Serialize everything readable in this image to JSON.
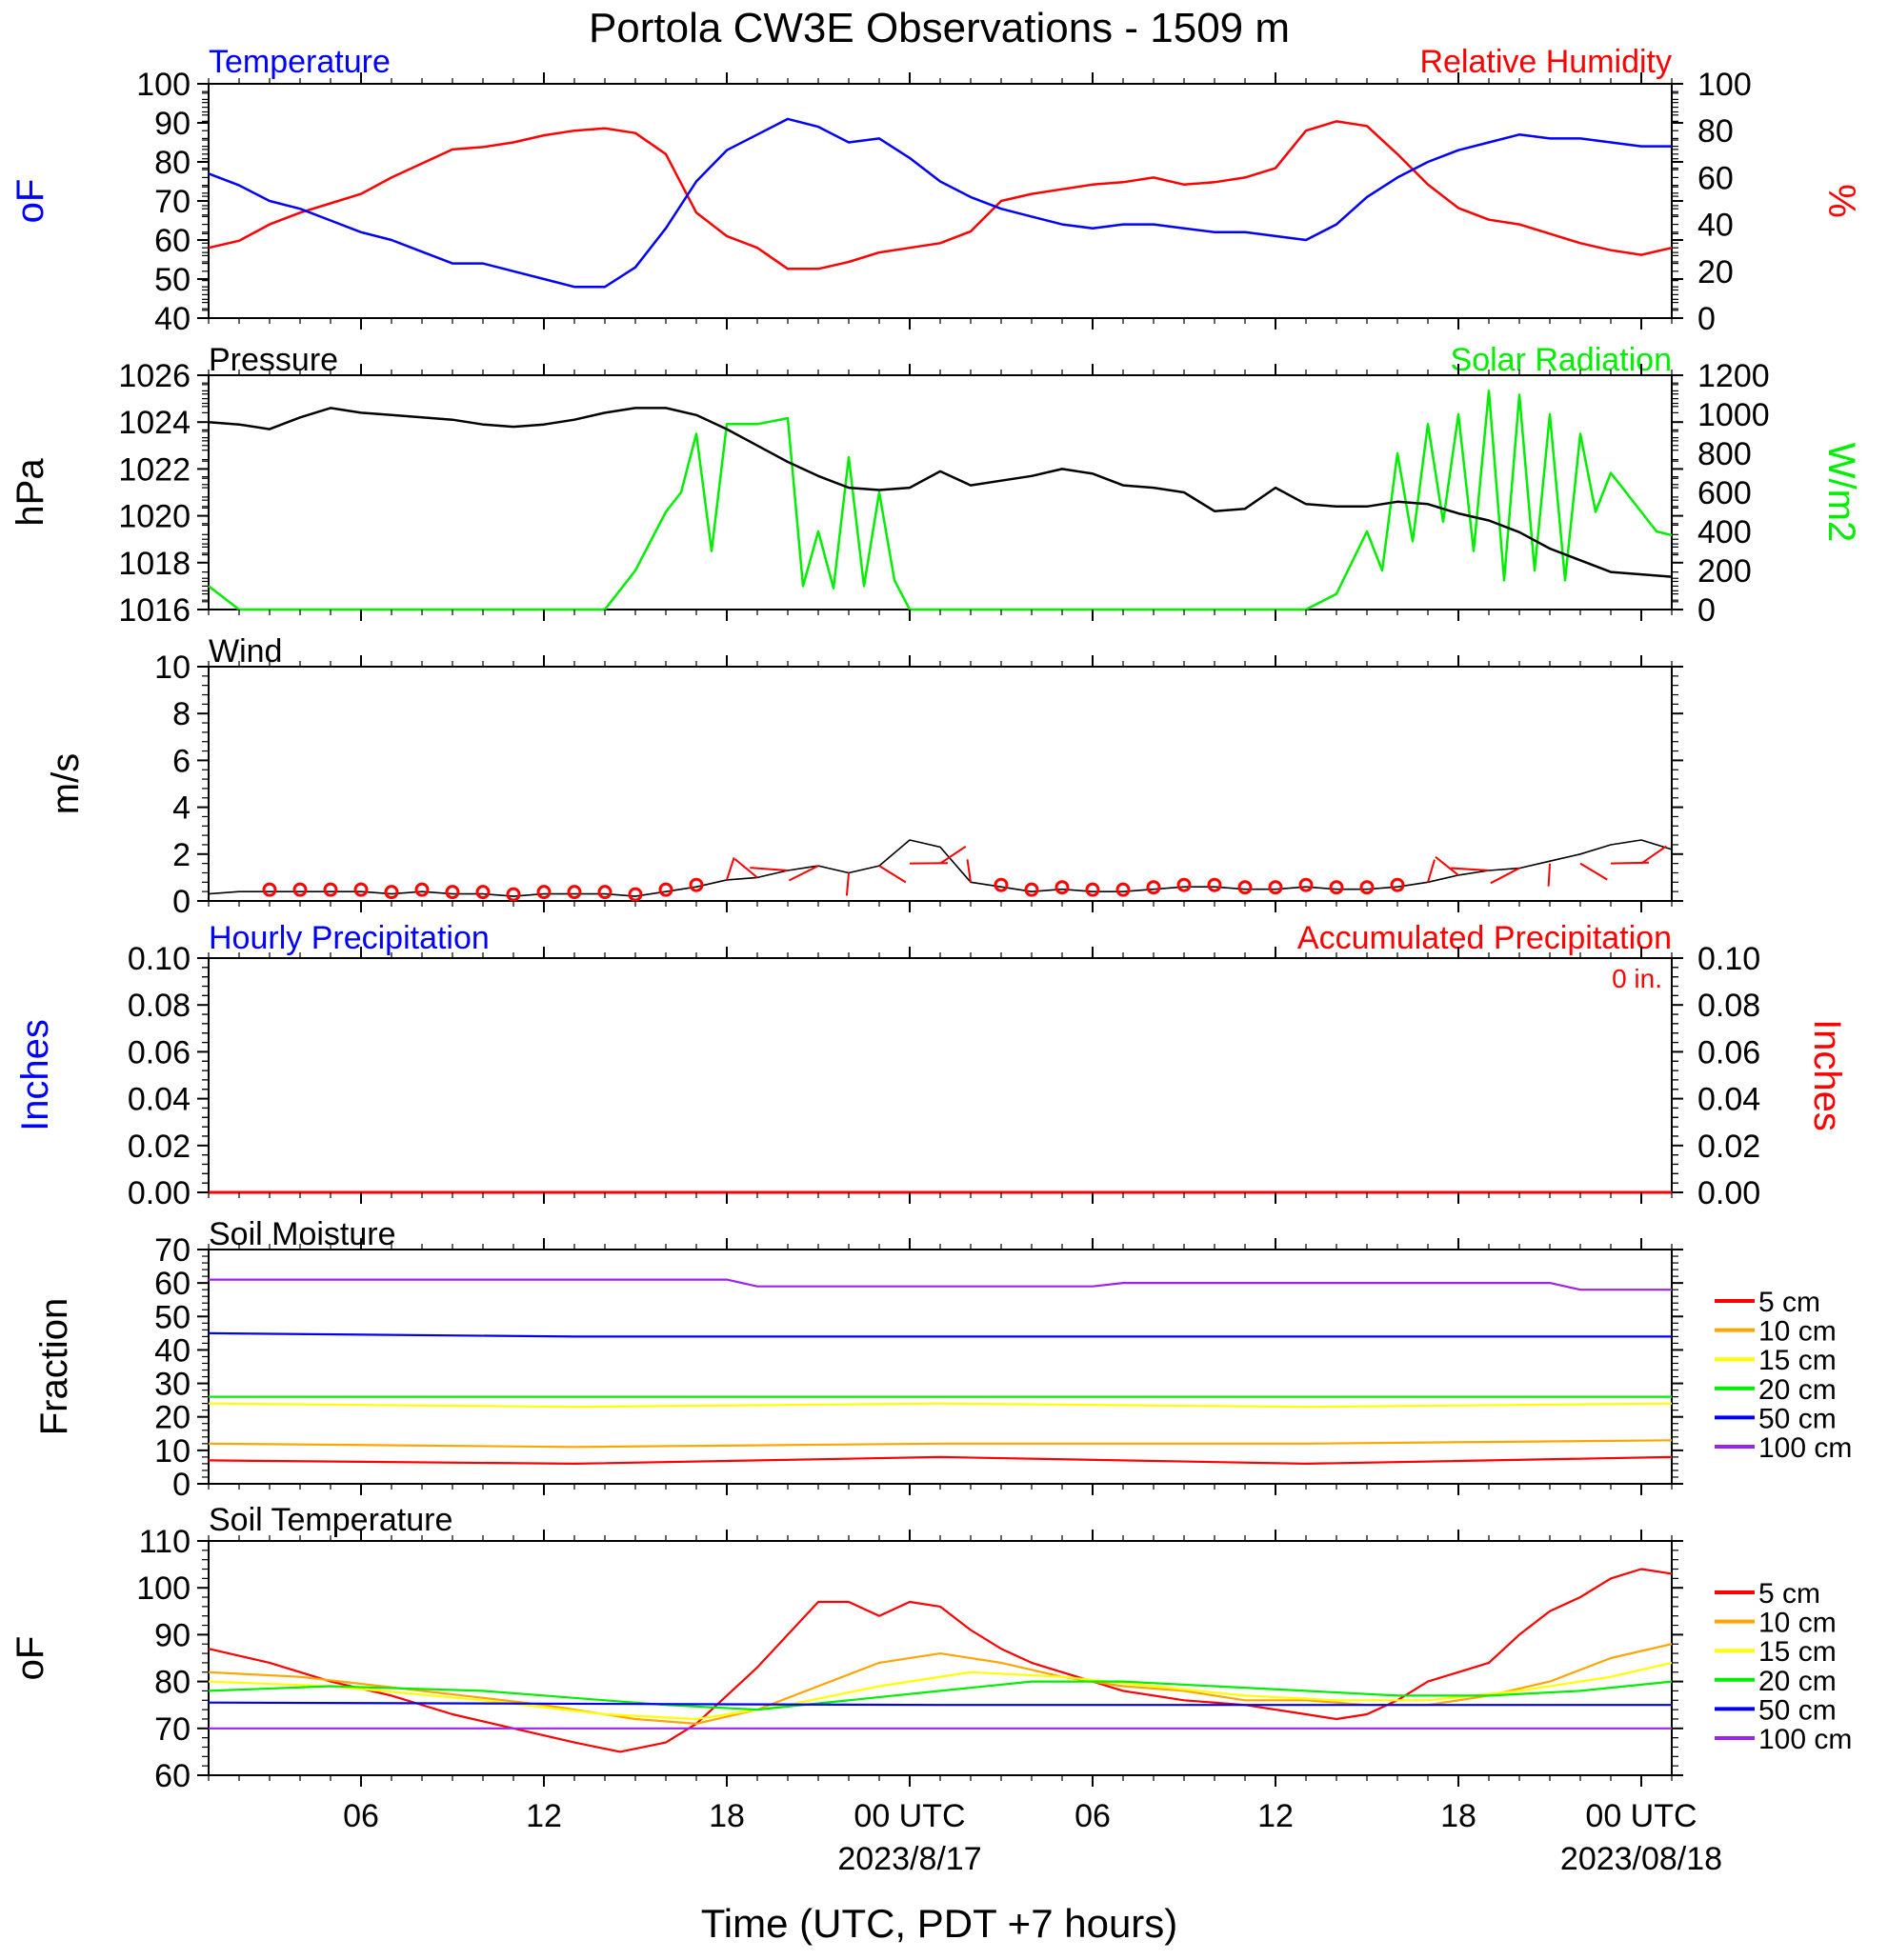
{
  "title": "Portola CW3E Observations - 1509 m",
  "x_axis": {
    "title": "Time (UTC, PDT +7 hours)",
    "ticks": [
      "06",
      "12",
      "18",
      "00 UTC",
      "06",
      "12",
      "18",
      "00 UTC"
    ],
    "tick_hours": [
      6,
      12,
      18,
      24,
      30,
      36,
      42,
      48
    ],
    "date_labels": [
      {
        "hour": 24,
        "text": "2023/8/17"
      },
      {
        "hour": 48,
        "text": "2023/08/18"
      }
    ],
    "range_hours": [
      1,
      49
    ]
  },
  "colors": {
    "temperature": "#0000ff",
    "humidity": "#ff0000",
    "pressure": "#000000",
    "solar": "#00ee00",
    "wind": "#000000",
    "wind_barb": "#ff0000",
    "hourly_precip": "#0000ff",
    "accum_precip": "#ff0000",
    "depth_5cm": "#ff0000",
    "depth_10cm": "#ffa500",
    "depth_15cm": "#ffff00",
    "depth_20cm": "#00ee00",
    "depth_50cm": "#0000ee",
    "depth_100cm": "#a020f0"
  },
  "panels": {
    "temp_rh": {
      "left_title": "Temperature",
      "right_title": "Relative Humidity",
      "left_unit": "oF",
      "right_unit": "%",
      "left_ticks": [
        "100",
        "90",
        "80",
        "70",
        "60",
        "50",
        "40"
      ],
      "right_ticks": [
        "100",
        "80",
        "60",
        "40",
        "20",
        "0"
      ]
    },
    "pressure_solar": {
      "left_title": "Pressure",
      "right_title": "Solar Radiation",
      "left_unit": "hPa",
      "right_unit": "W/m2",
      "left_ticks": [
        "1026",
        "1024",
        "1022",
        "1020",
        "1018",
        "1016"
      ],
      "right_ticks": [
        "1200",
        "1000",
        "800",
        "600",
        "400",
        "200",
        "0"
      ]
    },
    "wind": {
      "left_title": "Wind",
      "left_unit": "m/s",
      "left_ticks": [
        "10",
        "8",
        "6",
        "4",
        "2",
        "0"
      ]
    },
    "precip": {
      "left_title": "Hourly Precipitation",
      "right_title": "Accumulated Precipitation",
      "accum_label": "0 in.",
      "left_unit": "Inches",
      "right_unit": "Inches",
      "left_ticks": [
        "0.10",
        "0.08",
        "0.06",
        "0.04",
        "0.02",
        "0.00"
      ],
      "right_ticks": [
        "0.10",
        "0.08",
        "0.06",
        "0.04",
        "0.02",
        "0.00"
      ]
    },
    "soil_moisture": {
      "left_title": "Soil Moisture",
      "left_unit": "Fraction",
      "left_ticks": [
        "70",
        "60",
        "50",
        "40",
        "30",
        "20",
        "10",
        "0"
      ],
      "legend": [
        "5 cm",
        "10 cm",
        "15 cm",
        "20 cm",
        "50 cm",
        "100 cm"
      ]
    },
    "soil_temp": {
      "left_title": "Soil Temperature",
      "left_unit": "oF",
      "left_ticks": [
        "110",
        "100",
        "90",
        "80",
        "70",
        "60"
      ],
      "legend": [
        "5 cm",
        "10 cm",
        "15 cm",
        "20 cm",
        "50 cm",
        "100 cm"
      ]
    }
  },
  "chart_data": [
    {
      "type": "line",
      "panel": "Temperature / Relative Humidity",
      "x_unit": "hours since 2023-08-16 00 UTC",
      "ylim_left": [
        40,
        100
      ],
      "ylim_right": [
        0,
        100
      ],
      "series": [
        {
          "name": "Temperature",
          "axis": "left",
          "x": [
            1,
            2,
            3,
            4,
            5,
            6,
            7,
            8,
            9,
            10,
            11,
            12,
            13,
            14,
            15,
            16,
            17,
            18,
            19,
            20,
            21,
            22,
            23,
            24,
            25,
            26,
            27,
            28,
            29,
            30,
            31,
            32,
            33,
            34,
            35,
            36,
            37,
            38,
            39,
            40,
            41,
            42,
            43,
            44,
            45,
            46,
            47,
            48,
            49
          ],
          "y": [
            77,
            74,
            70,
            68,
            65,
            62,
            60,
            57,
            54,
            54,
            52,
            50,
            48,
            48,
            53,
            63,
            75,
            83,
            87,
            91,
            89,
            85,
            86,
            81,
            75,
            71,
            68,
            66,
            64,
            63,
            64,
            64,
            63,
            62,
            62,
            61,
            60,
            64,
            71,
            76,
            80,
            83,
            85,
            87,
            86,
            86,
            85,
            84,
            84
          ]
        },
        {
          "name": "Relative Humidity",
          "axis": "right",
          "x": [
            1,
            2,
            3,
            4,
            5,
            6,
            7,
            8,
            9,
            10,
            11,
            12,
            13,
            14,
            15,
            16,
            17,
            18,
            19,
            20,
            21,
            22,
            23,
            24,
            25,
            26,
            27,
            28,
            29,
            30,
            31,
            32,
            33,
            34,
            35,
            36,
            37,
            38,
            39,
            40,
            41,
            42,
            43,
            44,
            45,
            46,
            47,
            48,
            49
          ],
          "y": [
            30,
            33,
            40,
            45,
            49,
            53,
            60,
            66,
            72,
            73,
            75,
            78,
            80,
            81,
            79,
            70,
            45,
            35,
            30,
            21,
            21,
            24,
            28,
            30,
            32,
            37,
            50,
            53,
            55,
            57,
            58,
            60,
            57,
            58,
            60,
            64,
            80,
            84,
            82,
            70,
            57,
            47,
            42,
            40,
            36,
            32,
            29,
            27,
            30
          ]
        }
      ]
    },
    {
      "type": "line",
      "panel": "Pressure / Solar Radiation",
      "x_unit": "hours since 2023-08-16 00 UTC",
      "ylim_left": [
        1016,
        1026
      ],
      "ylim_right": [
        0,
        1200
      ],
      "series": [
        {
          "name": "Pressure",
          "axis": "left",
          "x": [
            1,
            2,
            3,
            4,
            5,
            6,
            7,
            8,
            9,
            10,
            11,
            12,
            13,
            14,
            15,
            16,
            17,
            18,
            19,
            20,
            21,
            22,
            23,
            24,
            25,
            26,
            27,
            28,
            29,
            30,
            31,
            32,
            33,
            34,
            35,
            36,
            37,
            38,
            39,
            40,
            41,
            42,
            43,
            44,
            45,
            46,
            47,
            48,
            49
          ],
          "y": [
            1024.0,
            1023.9,
            1023.7,
            1024.2,
            1024.6,
            1024.4,
            1024.3,
            1024.2,
            1024.1,
            1023.9,
            1023.8,
            1023.9,
            1024.1,
            1024.4,
            1024.6,
            1024.6,
            1024.3,
            1023.7,
            1023.0,
            1022.3,
            1021.7,
            1021.2,
            1021.1,
            1021.2,
            1021.9,
            1021.3,
            1021.5,
            1021.7,
            1022.0,
            1021.8,
            1021.3,
            1021.2,
            1021.0,
            1020.2,
            1020.3,
            1021.2,
            1020.5,
            1020.4,
            1020.4,
            1020.6,
            1020.5,
            1020.1,
            1019.8,
            1019.3,
            1018.6,
            1018.1,
            1017.6,
            1017.5,
            1017.4
          ]
        },
        {
          "name": "Solar Radiation",
          "axis": "right",
          "x": [
            1,
            2,
            3,
            4,
            5,
            6,
            7,
            8,
            9,
            10,
            11,
            12,
            13,
            14,
            15,
            16,
            16.5,
            17,
            17.5,
            18,
            19,
            20,
            20.5,
            21,
            21.5,
            22,
            22.5,
            23,
            23.5,
            24,
            24.5,
            25,
            26,
            27,
            28,
            29,
            30,
            31,
            32,
            33,
            34,
            35,
            36,
            37,
            38,
            39,
            39.5,
            40,
            40.5,
            41,
            41.5,
            42,
            42.5,
            43,
            43.5,
            44,
            44.5,
            45,
            45.5,
            46,
            46.5,
            47,
            47.5,
            48,
            48.5,
            49
          ],
          "y": [
            120,
            0,
            0,
            0,
            0,
            0,
            0,
            0,
            0,
            0,
            0,
            0,
            0,
            0,
            200,
            500,
            600,
            900,
            300,
            950,
            950,
            980,
            120,
            400,
            110,
            780,
            120,
            600,
            150,
            0,
            0,
            0,
            0,
            0,
            0,
            0,
            0,
            0,
            0,
            0,
            0,
            0,
            0,
            0,
            80,
            400,
            200,
            800,
            350,
            950,
            450,
            1000,
            300,
            1120,
            150,
            1100,
            200,
            1000,
            150,
            900,
            500,
            700,
            600,
            500,
            400,
            380
          ]
        }
      ]
    },
    {
      "type": "line",
      "panel": "Wind",
      "x_unit": "hours since 2023-08-16 00 UTC",
      "ylim": [
        0,
        10
      ],
      "series": [
        {
          "name": "Wind",
          "x": [
            1,
            2,
            3,
            4,
            5,
            6,
            7,
            8,
            9,
            10,
            11,
            12,
            13,
            14,
            15,
            16,
            17,
            18,
            19,
            20,
            21,
            22,
            23,
            24,
            25,
            26,
            27,
            28,
            29,
            30,
            31,
            32,
            33,
            34,
            35,
            36,
            37,
            38,
            39,
            40,
            41,
            42,
            43,
            44,
            45,
            46,
            47,
            48,
            49
          ],
          "y": [
            0.3,
            0.4,
            0.4,
            0.4,
            0.4,
            0.4,
            0.3,
            0.4,
            0.3,
            0.3,
            0.2,
            0.3,
            0.3,
            0.3,
            0.2,
            0.4,
            0.6,
            0.9,
            1.0,
            1.3,
            1.5,
            1.2,
            1.5,
            2.6,
            2.3,
            0.8,
            0.6,
            0.4,
            0.5,
            0.4,
            0.4,
            0.5,
            0.6,
            0.6,
            0.5,
            0.5,
            0.6,
            0.5,
            0.5,
            0.6,
            0.8,
            1.1,
            1.3,
            1.4,
            1.7,
            2.0,
            2.4,
            2.6,
            2.2
          ]
        }
      ]
    },
    {
      "type": "line",
      "panel": "Hourly / Accumulated Precipitation",
      "x_unit": "hours since 2023-08-16 00 UTC",
      "ylim": [
        0,
        0.1
      ],
      "series": [
        {
          "name": "Hourly Precipitation",
          "x": [
            1,
            49
          ],
          "y": [
            0,
            0
          ]
        },
        {
          "name": "Accumulated Precipitation",
          "x": [
            1,
            49
          ],
          "y": [
            0,
            0
          ]
        }
      ]
    },
    {
      "type": "line",
      "panel": "Soil Moisture",
      "x_unit": "hours since 2023-08-16 00 UTC",
      "ylim": [
        0,
        70
      ],
      "series": [
        {
          "name": "5 cm",
          "x": [
            1,
            13,
            25,
            37,
            49
          ],
          "y": [
            7,
            6,
            8,
            6,
            8
          ]
        },
        {
          "name": "10 cm",
          "x": [
            1,
            13,
            25,
            37,
            49
          ],
          "y": [
            12,
            11,
            12,
            12,
            13
          ]
        },
        {
          "name": "15 cm",
          "x": [
            1,
            13,
            25,
            37,
            49
          ],
          "y": [
            24,
            23,
            24,
            23,
            24
          ]
        },
        {
          "name": "20 cm",
          "x": [
            1,
            13,
            25,
            37,
            49
          ],
          "y": [
            26,
            26,
            26,
            26,
            26
          ]
        },
        {
          "name": "50 cm",
          "x": [
            1,
            13,
            25,
            37,
            49
          ],
          "y": [
            45,
            44,
            44,
            44,
            44
          ]
        },
        {
          "name": "100 cm",
          "x": [
            1,
            18,
            19,
            30,
            31,
            45,
            46,
            49
          ],
          "y": [
            61,
            61,
            59,
            59,
            60,
            60,
            58,
            58
          ]
        }
      ]
    },
    {
      "type": "line",
      "panel": "Soil Temperature",
      "x_unit": "hours since 2023-08-16 00 UTC",
      "ylim": [
        60,
        110
      ],
      "series": [
        {
          "name": "5 cm",
          "x": [
            1,
            3,
            5,
            7,
            9,
            11,
            13,
            14.5,
            16,
            17,
            18,
            19,
            20,
            21,
            22,
            23,
            24,
            25,
            26,
            27,
            28,
            29,
            31,
            33,
            35,
            37,
            38,
            39,
            40,
            41,
            42,
            43,
            44,
            45,
            46,
            47,
            48,
            49
          ],
          "y": [
            87,
            84,
            80,
            77,
            73,
            70,
            67,
            65,
            67,
            71,
            77,
            83,
            90,
            97,
            97,
            94,
            97,
            96,
            91,
            87,
            84,
            82,
            78,
            76,
            75,
            73,
            72,
            73,
            76,
            80,
            82,
            84,
            90,
            95,
            98,
            102,
            104,
            103
          ]
        },
        {
          "name": "10 cm",
          "x": [
            1,
            4,
            8,
            12,
            15,
            17,
            19,
            21,
            23,
            25,
            27,
            29,
            31,
            33,
            35,
            37,
            39,
            41,
            43,
            45,
            47,
            49
          ],
          "y": [
            82,
            81,
            78,
            75,
            72,
            71,
            74,
            79,
            84,
            86,
            84,
            81,
            79,
            78,
            76,
            76,
            75,
            75,
            77,
            80,
            85,
            88
          ]
        },
        {
          "name": "15 cm",
          "x": [
            1,
            5,
            10,
            14,
            17,
            20,
            23,
            26,
            29,
            32,
            35,
            38,
            41,
            44,
            47,
            49
          ],
          "y": [
            80,
            79,
            76,
            73,
            72,
            75,
            79,
            82,
            81,
            79,
            77,
            76,
            76,
            78,
            81,
            84
          ]
        },
        {
          "name": "20 cm",
          "x": [
            1,
            5,
            10,
            14,
            16,
            19,
            22,
            25,
            28,
            31,
            34,
            37,
            40,
            43,
            46,
            49
          ],
          "y": [
            78,
            79,
            78,
            76,
            75,
            74,
            76,
            78,
            80,
            80,
            79,
            78,
            77,
            77,
            78,
            80
          ]
        },
        {
          "name": "50 cm",
          "x": [
            1,
            25,
            49
          ],
          "y": [
            75.5,
            75,
            75
          ]
        },
        {
          "name": "100 cm",
          "x": [
            1,
            49
          ],
          "y": [
            70,
            70
          ]
        }
      ]
    }
  ]
}
